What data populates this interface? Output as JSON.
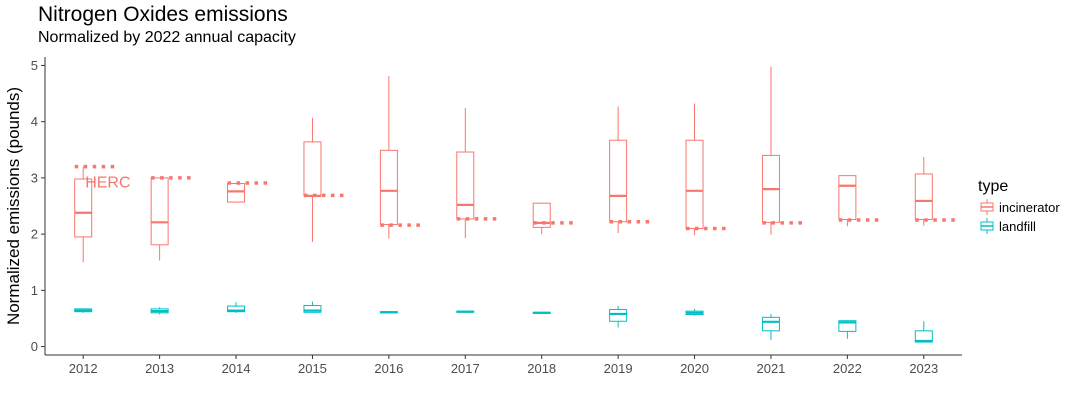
{
  "chart_data": {
    "type": "box",
    "title": "Nitrogen Oxides emissions",
    "subtitle": "Normalized by 2022 annual capacity",
    "xlabel": "",
    "ylabel": "Normalized emissions (pounds)",
    "ylim": [
      -0.15,
      5.15
    ],
    "yticks": [
      0,
      1,
      2,
      3,
      4,
      5
    ],
    "grid": false,
    "legend": {
      "title": "type",
      "position": "right",
      "entries": [
        "incinerator",
        "landfill"
      ]
    },
    "colors": {
      "incinerator": "#F8766D",
      "landfill": "#00BFC4"
    },
    "categories": [
      "2012",
      "2013",
      "2014",
      "2015",
      "2016",
      "2017",
      "2018",
      "2019",
      "2020",
      "2021",
      "2022",
      "2023"
    ],
    "series": [
      {
        "name": "incinerator",
        "boxes": [
          {
            "min": 1.5,
            "q1": 1.95,
            "median": 2.38,
            "q3": 2.98,
            "max": 3.2
          },
          {
            "min": 1.53,
            "q1": 1.81,
            "median": 2.21,
            "q3": 3.0,
            "max": 3.0
          },
          {
            "min": 2.57,
            "q1": 2.57,
            "median": 2.76,
            "q3": 2.9,
            "max": 2.9
          },
          {
            "min": 1.86,
            "q1": 2.68,
            "median": 2.68,
            "q3": 3.64,
            "max": 4.07
          },
          {
            "min": 1.92,
            "q1": 2.17,
            "median": 2.77,
            "q3": 3.49,
            "max": 4.81
          },
          {
            "min": 1.93,
            "q1": 2.27,
            "median": 2.52,
            "q3": 3.46,
            "max": 4.24
          },
          {
            "min": 2.0,
            "q1": 2.12,
            "median": 2.2,
            "q3": 2.55,
            "max": 2.55
          },
          {
            "min": 2.02,
            "q1": 2.22,
            "median": 2.68,
            "q3": 3.67,
            "max": 4.27
          },
          {
            "min": 1.98,
            "q1": 2.1,
            "median": 2.77,
            "q3": 3.67,
            "max": 4.32
          },
          {
            "min": 1.99,
            "q1": 2.21,
            "median": 2.8,
            "q3": 3.4,
            "max": 4.98
          },
          {
            "min": 2.14,
            "q1": 2.26,
            "median": 2.86,
            "q3": 3.04,
            "max": 3.04
          },
          {
            "min": 2.15,
            "q1": 2.26,
            "median": 2.59,
            "q3": 3.07,
            "max": 3.37
          }
        ]
      },
      {
        "name": "landfill",
        "boxes": [
          {
            "min": 0.6,
            "q1": 0.62,
            "median": 0.64,
            "q3": 0.67,
            "max": 0.68
          },
          {
            "min": 0.57,
            "q1": 0.6,
            "median": 0.63,
            "q3": 0.67,
            "max": 0.7
          },
          {
            "min": 0.6,
            "q1": 0.62,
            "median": 0.64,
            "q3": 0.72,
            "max": 0.79
          },
          {
            "min": 0.6,
            "q1": 0.61,
            "median": 0.64,
            "q3": 0.73,
            "max": 0.8
          },
          {
            "min": 0.59,
            "q1": 0.6,
            "median": 0.61,
            "q3": 0.62,
            "max": 0.62
          },
          {
            "min": 0.6,
            "q1": 0.61,
            "median": 0.62,
            "q3": 0.63,
            "max": 0.63
          },
          {
            "min": 0.58,
            "q1": 0.59,
            "median": 0.6,
            "q3": 0.61,
            "max": 0.61
          },
          {
            "min": 0.34,
            "q1": 0.45,
            "median": 0.58,
            "q3": 0.66,
            "max": 0.72
          },
          {
            "min": 0.55,
            "q1": 0.57,
            "median": 0.6,
            "q3": 0.63,
            "max": 0.67
          },
          {
            "min": 0.12,
            "q1": 0.28,
            "median": 0.44,
            "q3": 0.52,
            "max": 0.58
          },
          {
            "min": 0.14,
            "q1": 0.27,
            "median": 0.43,
            "q3": 0.46,
            "max": 0.47
          },
          {
            "min": 0.07,
            "q1": 0.08,
            "median": 0.1,
            "q3": 0.28,
            "max": 0.45
          }
        ]
      }
    ],
    "reference_line": {
      "label": "HERC",
      "values": [
        3.2,
        3.0,
        2.91,
        2.69,
        2.16,
        2.27,
        2.2,
        2.22,
        2.1,
        2.2,
        2.25,
        2.25
      ]
    }
  }
}
